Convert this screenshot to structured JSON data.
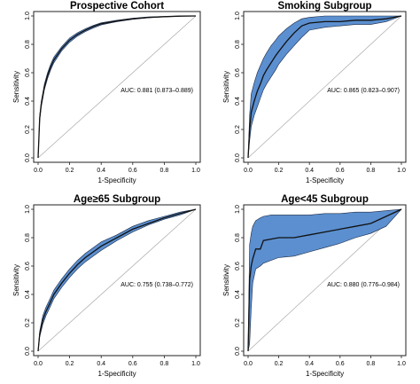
{
  "chart_data": [
    {
      "type": "line",
      "title": "Prospective Cohort",
      "xlabel": "1-Specificity",
      "ylabel": "Sensitivity",
      "xlim": [
        0,
        1
      ],
      "ylim": [
        0,
        1
      ],
      "xticks": [
        "0.0",
        "0.2",
        "0.4",
        "0.6",
        "0.8",
        "1.0"
      ],
      "yticks": [
        "0.0",
        "0.2",
        "0.4",
        "0.6",
        "0.8",
        "1.0"
      ],
      "annotation": "AUC: 0.881 (0.873–0.889)",
      "reference_line": true,
      "band_color": "#5b8fd0",
      "series": [
        {
          "x": [
            0,
            0.01,
            0.02,
            0.04,
            0.06,
            0.08,
            0.1,
            0.15,
            0.2,
            0.25,
            0.3,
            0.35,
            0.4,
            0.5,
            0.6,
            0.7,
            0.8,
            0.9,
            1.0
          ],
          "y": [
            0,
            0.28,
            0.38,
            0.5,
            0.58,
            0.64,
            0.69,
            0.77,
            0.83,
            0.87,
            0.9,
            0.925,
            0.945,
            0.965,
            0.98,
            0.99,
            0.995,
            0.999,
            1.0
          ],
          "lower": [
            0,
            0.26,
            0.36,
            0.48,
            0.56,
            0.62,
            0.67,
            0.755,
            0.815,
            0.858,
            0.89,
            0.915,
            0.937,
            0.96,
            0.976,
            0.987,
            0.993,
            0.998,
            1.0
          ],
          "upper": [
            0,
            0.3,
            0.4,
            0.52,
            0.6,
            0.66,
            0.71,
            0.785,
            0.845,
            0.882,
            0.91,
            0.933,
            0.952,
            0.97,
            0.984,
            0.993,
            0.997,
            1.0,
            1.0
          ]
        }
      ]
    },
    {
      "type": "line",
      "title": "Smoking Subgroup",
      "xlabel": "1-Specificity",
      "ylabel": "Sensitivity",
      "xlim": [
        0,
        1
      ],
      "ylim": [
        0,
        1
      ],
      "xticks": [
        "0.0",
        "0.2",
        "0.4",
        "0.6",
        "0.8",
        "1.0"
      ],
      "yticks": [
        "0.0",
        "0.2",
        "0.4",
        "0.6",
        "0.8",
        "1.0"
      ],
      "annotation": "AUC: 0.865 (0.823–0.907)",
      "reference_line": true,
      "band_color": "#5b8fd0",
      "series": [
        {
          "x": [
            0,
            0.01,
            0.02,
            0.04,
            0.06,
            0.08,
            0.1,
            0.12,
            0.15,
            0.18,
            0.2,
            0.25,
            0.3,
            0.35,
            0.4,
            0.5,
            0.6,
            0.7,
            0.8,
            0.9,
            1.0
          ],
          "y": [
            0,
            0.2,
            0.32,
            0.4,
            0.47,
            0.52,
            0.58,
            0.62,
            0.67,
            0.72,
            0.75,
            0.82,
            0.88,
            0.93,
            0.95,
            0.96,
            0.96,
            0.97,
            0.97,
            0.98,
            1.0
          ],
          "lower": [
            0,
            0.12,
            0.22,
            0.3,
            0.36,
            0.42,
            0.48,
            0.52,
            0.57,
            0.62,
            0.66,
            0.73,
            0.79,
            0.85,
            0.9,
            0.92,
            0.93,
            0.94,
            0.94,
            0.96,
            1.0
          ],
          "upper": [
            0,
            0.3,
            0.45,
            0.53,
            0.6,
            0.65,
            0.7,
            0.74,
            0.79,
            0.83,
            0.86,
            0.91,
            0.95,
            0.98,
            0.99,
            1.0,
            1.0,
            1.0,
            1.0,
            1.0,
            1.0
          ]
        }
      ]
    },
    {
      "type": "line",
      "title": "Age≥65 Subgroup",
      "xlabel": "1-Specificity",
      "ylabel": "Sensitivity",
      "xlim": [
        0,
        1
      ],
      "ylim": [
        0,
        1
      ],
      "xticks": [
        "0.0",
        "0.2",
        "0.4",
        "0.6",
        "0.8",
        "1.0"
      ],
      "yticks": [
        "0.0",
        "0.2",
        "0.4",
        "0.6",
        "0.8",
        "1.0"
      ],
      "annotation": "AUC: 0.755 (0.738–0.772)",
      "reference_line": true,
      "band_color": "#5b8fd0",
      "series": [
        {
          "x": [
            0,
            0.01,
            0.03,
            0.05,
            0.08,
            0.1,
            0.15,
            0.2,
            0.25,
            0.3,
            0.35,
            0.4,
            0.5,
            0.6,
            0.7,
            0.8,
            0.9,
            0.95,
            1.0
          ],
          "y": [
            0,
            0.12,
            0.22,
            0.28,
            0.35,
            0.4,
            0.48,
            0.55,
            0.61,
            0.66,
            0.7,
            0.74,
            0.8,
            0.86,
            0.9,
            0.94,
            0.97,
            0.985,
            1.0
          ],
          "lower": [
            0,
            0.1,
            0.19,
            0.25,
            0.32,
            0.37,
            0.45,
            0.52,
            0.58,
            0.63,
            0.67,
            0.71,
            0.78,
            0.84,
            0.89,
            0.93,
            0.96,
            0.98,
            1.0
          ],
          "upper": [
            0,
            0.14,
            0.25,
            0.31,
            0.38,
            0.43,
            0.51,
            0.58,
            0.64,
            0.69,
            0.73,
            0.77,
            0.82,
            0.88,
            0.92,
            0.95,
            0.98,
            0.99,
            1.0
          ]
        }
      ]
    },
    {
      "type": "line",
      "title": "Age<45 Subgroup",
      "xlabel": "1-Specificity",
      "ylabel": "Sensitivity",
      "xlim": [
        0,
        1
      ],
      "ylim": [
        0,
        1
      ],
      "xticks": [
        "0.0",
        "0.2",
        "0.4",
        "0.6",
        "0.8",
        "1.0"
      ],
      "yticks": [
        "0.0",
        "0.2",
        "0.4",
        "0.6",
        "0.8",
        "1.0"
      ],
      "annotation": "AUC: 0.880 (0.776–0.984)",
      "reference_line": true,
      "band_color": "#5b8fd0",
      "series": [
        {
          "x": [
            0,
            0.01,
            0.02,
            0.03,
            0.05,
            0.08,
            0.1,
            0.15,
            0.2,
            0.3,
            0.4,
            0.5,
            0.6,
            0.7,
            0.8,
            0.9,
            1.0
          ],
          "y": [
            0,
            0.5,
            0.6,
            0.65,
            0.72,
            0.72,
            0.78,
            0.79,
            0.8,
            0.8,
            0.82,
            0.84,
            0.86,
            0.88,
            0.9,
            0.95,
            1.0
          ],
          "lower": [
            0,
            0.05,
            0.3,
            0.48,
            0.58,
            0.6,
            0.62,
            0.64,
            0.66,
            0.67,
            0.7,
            0.73,
            0.76,
            0.8,
            0.83,
            0.88,
            1.0
          ],
          "upper": [
            0,
            0.75,
            0.83,
            0.88,
            0.92,
            0.94,
            0.95,
            0.96,
            0.96,
            0.96,
            0.96,
            0.97,
            0.97,
            0.98,
            0.98,
            0.99,
            1.0
          ]
        }
      ]
    }
  ]
}
